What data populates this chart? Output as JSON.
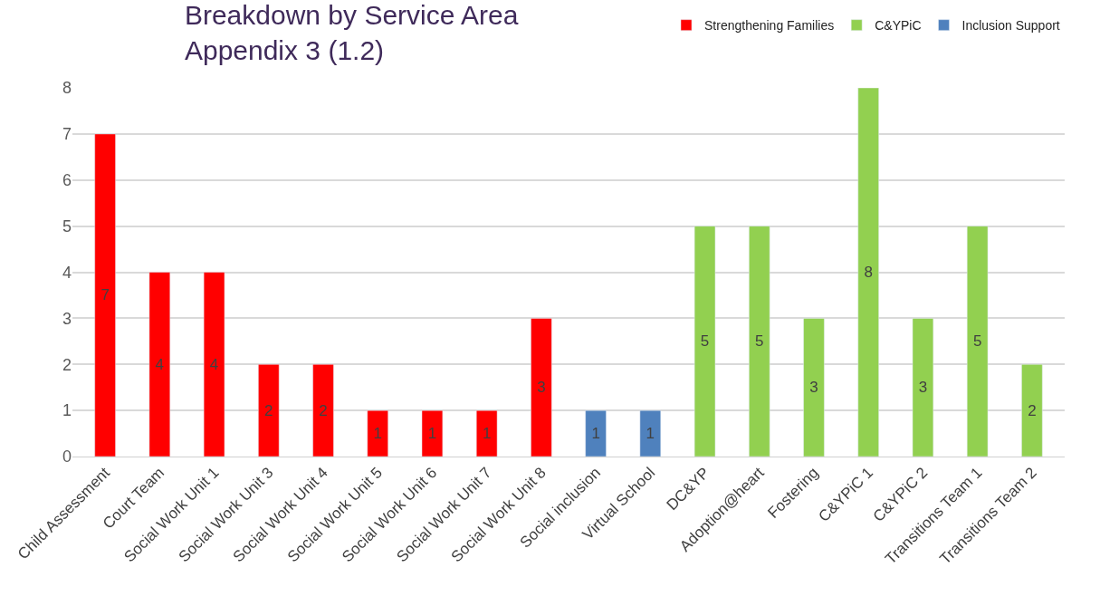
{
  "chart_data": {
    "type": "bar",
    "title": "Breakdown by Service Area",
    "subtitle": "Appendix 3 (1.2)",
    "categories": [
      "Child Assessment",
      "Court Team",
      "Social Work Unit 1",
      "Social Work Unit 3",
      "Social Work Unit 4",
      "Social Work Unit 5",
      "Social Work Unit 6",
      "Social Work Unit 7",
      "Social Work Unit 8",
      "Social inclusion",
      "Virtual School",
      "DC&YP",
      "Adoption@heart",
      "Fostering",
      "C&YPiC 1",
      "C&YPiC 2",
      "Transitions Team 1",
      "Transitions Team 2"
    ],
    "series": [
      {
        "name": "Strengthening Families",
        "color": "#ff0000",
        "values": [
          7,
          4,
          4,
          2,
          2,
          1,
          1,
          1,
          3,
          null,
          null,
          null,
          null,
          null,
          null,
          null,
          null,
          null
        ]
      },
      {
        "name": "C&YPiC",
        "color": "#92d050",
        "values": [
          null,
          null,
          null,
          null,
          null,
          null,
          null,
          null,
          null,
          null,
          null,
          5,
          5,
          3,
          8,
          3,
          5,
          2
        ]
      },
      {
        "name": "Inclusion Support",
        "color": "#4f81bd",
        "values": [
          null,
          null,
          null,
          null,
          null,
          null,
          null,
          null,
          null,
          1,
          1,
          null,
          null,
          null,
          null,
          null,
          null,
          null
        ]
      }
    ],
    "ylim": [
      0,
      8
    ],
    "yticks": [
      0,
      1,
      2,
      3,
      4,
      5,
      6,
      7,
      8
    ],
    "grid": "y",
    "legend": "top right",
    "data_labels": true
  }
}
